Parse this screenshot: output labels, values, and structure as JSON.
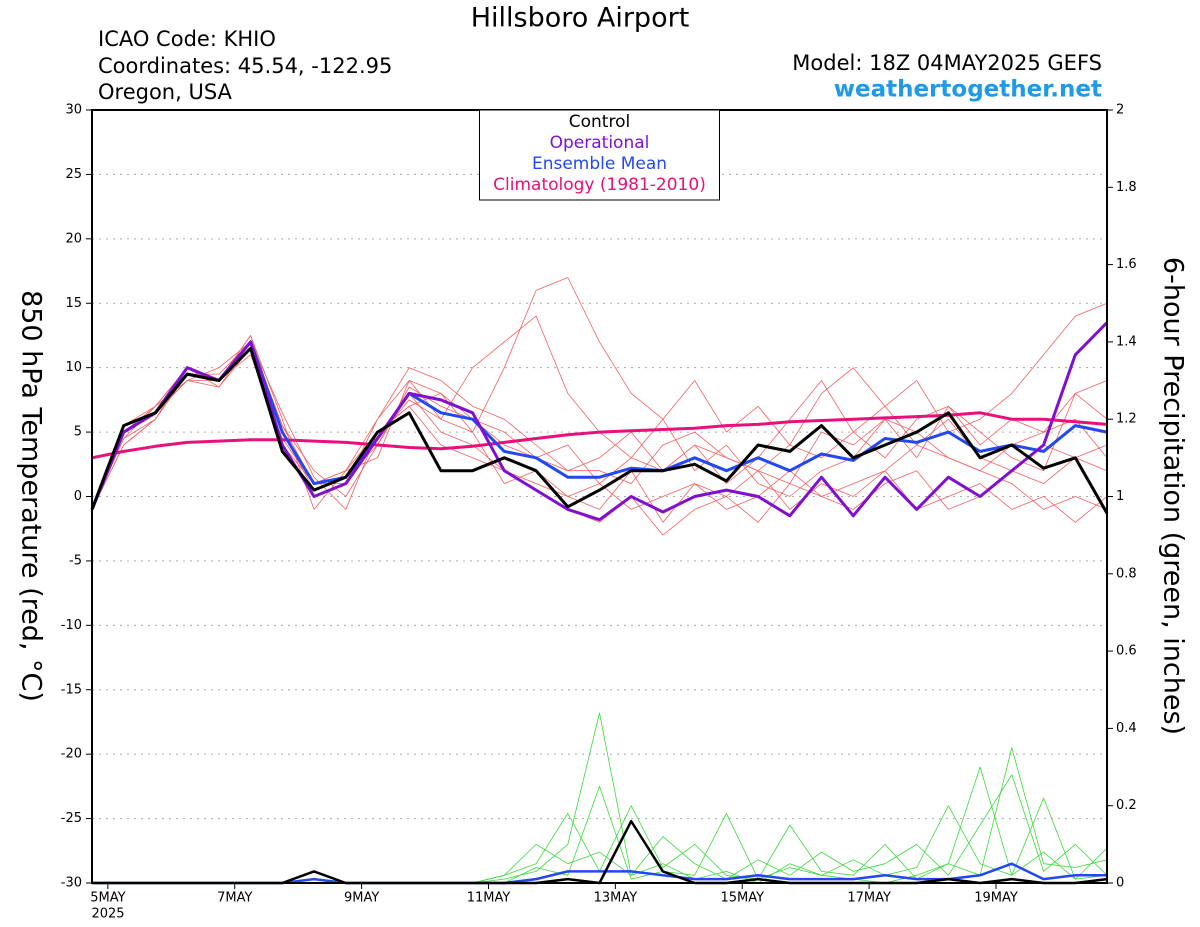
{
  "chart_data": {
    "type": "line",
    "title": "Hillsboro Airport",
    "info": [
      "ICAO Code: KHIO",
      "Coordinates: 45.54, -122.95",
      "Oregon, USA"
    ],
    "model": "Model: 18Z 04MAY2025 GEFS",
    "source": "weathertogether.net",
    "y_label": "850 hPa Temperature (red, °C)",
    "y2_label": "6-hour Precipitation (green, inches)",
    "x_year_label": "2025",
    "legend": "top-center",
    "grid": true,
    "xlim": [
      0,
      384
    ],
    "xticks": [
      {
        "value": 6,
        "label": "5MAY"
      },
      {
        "value": 54,
        "label": "7MAY"
      },
      {
        "value": 102,
        "label": "9MAY"
      },
      {
        "value": 150,
        "label": "11MAY"
      },
      {
        "value": 198,
        "label": "13MAY"
      },
      {
        "value": 246,
        "label": "15MAY"
      },
      {
        "value": 294,
        "label": "17MAY"
      },
      {
        "value": 342,
        "label": "19MAY"
      }
    ],
    "ylim": [
      -30,
      30
    ],
    "yticks": [
      -30,
      -25,
      -20,
      -15,
      -10,
      -5,
      0,
      5,
      10,
      15,
      20,
      25,
      30
    ],
    "y2lim": [
      0,
      2
    ],
    "y2ticks": [
      0,
      0.2,
      0.4,
      0.6,
      0.8,
      1,
      1.2,
      1.4,
      1.6,
      1.8,
      2
    ],
    "x": [
      0,
      12,
      24,
      36,
      48,
      60,
      72,
      84,
      96,
      108,
      120,
      132,
      144,
      156,
      168,
      180,
      192,
      204,
      216,
      228,
      240,
      252,
      264,
      276,
      288,
      300,
      312,
      324,
      336,
      348,
      360,
      372,
      384
    ],
    "series": [
      {
        "color": "#f06060",
        "width": 0.8,
        "values": [
          -1,
          4,
          6,
          10,
          9,
          12.5,
          6,
          -1,
          2,
          5,
          7,
          8,
          6,
          5,
          3,
          4,
          1,
          3,
          2,
          4,
          3,
          2,
          1,
          5,
          4,
          6,
          3,
          7,
          5,
          3,
          2,
          8,
          9
        ]
      },
      {
        "color": "#f06060",
        "width": 0.8,
        "values": [
          -1,
          5,
          7,
          9,
          8.5,
          11.5,
          4,
          0,
          1,
          6,
          9,
          6,
          10,
          12,
          14,
          8,
          5,
          3,
          6,
          2,
          4,
          1,
          0,
          2,
          3,
          6,
          5,
          3,
          2,
          4,
          5,
          6,
          3
        ]
      },
      {
        "color": "#f06060",
        "width": 0.8,
        "values": [
          -1,
          4.5,
          6,
          9.5,
          9.5,
          12,
          5.5,
          2,
          0,
          4,
          8,
          5,
          4,
          2,
          1,
          0,
          -1,
          2,
          -2,
          1,
          0,
          2,
          -1,
          1,
          0,
          2,
          4,
          3,
          2,
          1,
          -1,
          0,
          -1
        ]
      },
      {
        "color": "#f06060",
        "width": 0.8,
        "values": [
          -1,
          5,
          6.5,
          9,
          9,
          11,
          4.5,
          1,
          2,
          3,
          9,
          8,
          5,
          10,
          16,
          17,
          12,
          8,
          6,
          9,
          5,
          7,
          4,
          8,
          10,
          7,
          9,
          5,
          6,
          8,
          11,
          14,
          15
        ]
      },
      {
        "color": "#f06060",
        "width": 0.8,
        "values": [
          -1,
          5.5,
          7,
          10,
          8.5,
          12,
          6.5,
          1.5,
          -1,
          5,
          7,
          4,
          3,
          2,
          0.5,
          -1,
          -2,
          0,
          -3,
          -1,
          0,
          -2,
          1,
          0,
          1,
          2,
          -1,
          0,
          1,
          -1,
          0,
          -2,
          0
        ]
      },
      {
        "color": "#f06060",
        "width": 0.8,
        "values": [
          -1,
          4,
          6,
          9.5,
          9,
          12.5,
          5,
          0.5,
          1.5,
          4,
          8.5,
          7,
          6,
          4,
          3,
          2,
          2,
          1,
          4,
          5,
          3,
          2,
          4,
          3,
          5,
          3,
          6,
          7,
          4,
          6,
          5,
          8,
          6
        ]
      },
      {
        "color": "#f06060",
        "width": 0.8,
        "values": [
          -1,
          5,
          6.5,
          9,
          10,
          12,
          5.5,
          1,
          2,
          6,
          10,
          9,
          7,
          6,
          4,
          2,
          3,
          5,
          2,
          4,
          1,
          3,
          6,
          9,
          5,
          7,
          4,
          6,
          3,
          2,
          4,
          3,
          2
        ]
      },
      {
        "color": "#f06060",
        "width": 0.8,
        "values": [
          -1,
          4.5,
          7,
          10,
          9,
          11.5,
          4,
          1,
          1,
          4.5,
          7.5,
          6,
          5,
          1,
          2,
          0,
          1,
          -1,
          0,
          1,
          -1,
          0,
          2,
          0,
          -1,
          1,
          2,
          -1,
          0,
          2,
          1,
          3,
          4
        ]
      },
      {
        "color": "#3cd83c",
        "width": 0.8,
        "axis": "y2",
        "values": [
          0,
          0,
          0,
          0,
          0,
          0,
          0,
          0,
          0,
          0,
          0,
          0,
          0,
          0.01,
          0.03,
          0.1,
          0.44,
          0.02,
          0.05,
          0.01,
          0.03,
          0,
          0.05,
          0.02,
          0.01,
          0,
          0.02,
          0.05,
          0.3,
          0.02,
          0.08,
          0.01,
          0.02
        ]
      },
      {
        "color": "#3cd83c",
        "width": 0.8,
        "axis": "y2",
        "values": [
          0,
          0,
          0,
          0,
          0,
          0,
          0,
          0.03,
          0,
          0,
          0,
          0,
          0,
          0.02,
          0.05,
          0.18,
          0.03,
          0.2,
          0.04,
          0.1,
          0.02,
          0.01,
          0.15,
          0.03,
          0.02,
          0.1,
          0.01,
          0.05,
          0.02,
          0.35,
          0.05,
          0.04,
          0.06
        ]
      },
      {
        "color": "#3cd83c",
        "width": 0.8,
        "axis": "y2",
        "values": [
          0,
          0,
          0,
          0,
          0,
          0,
          0,
          0,
          0,
          0,
          0,
          0,
          0,
          0.02,
          0.1,
          0.05,
          0.08,
          0.02,
          0.12,
          0.05,
          0.01,
          0.06,
          0.02,
          0.08,
          0.03,
          0.05,
          0.1,
          0.02,
          0.15,
          0.28,
          0.03,
          0.1,
          0.02
        ]
      },
      {
        "color": "#3cd83c",
        "width": 0.8,
        "axis": "y2",
        "values": [
          0,
          0,
          0,
          0,
          0,
          0,
          0,
          0,
          0,
          0,
          0,
          0,
          0,
          0,
          0.04,
          0.02,
          0.25,
          0.01,
          0.03,
          0.02,
          0.18,
          0.01,
          0.04,
          0.02,
          0.06,
          0.02,
          0.04,
          0.2,
          0.05,
          0.02,
          0.22,
          0.01,
          0.09
        ]
      },
      {
        "name": "Climatology (1981-2010)",
        "color": "#e8107a",
        "width": 3,
        "values": [
          3,
          3.5,
          3.9,
          4.2,
          4.3,
          4.4,
          4.4,
          4.3,
          4.2,
          4.0,
          3.8,
          3.7,
          3.9,
          4.2,
          4.5,
          4.8,
          5.0,
          5.1,
          5.2,
          5.3,
          5.5,
          5.6,
          5.8,
          5.9,
          6.0,
          6.1,
          6.2,
          6.3,
          6.5,
          6.0,
          6.0,
          5.8,
          5.6
        ]
      },
      {
        "name": "Ensemble Mean",
        "color": "#2448f0",
        "width": 3,
        "values": [
          -1,
          5,
          6.5,
          9.5,
          9,
          12,
          5,
          1,
          1.5,
          4.5,
          8,
          6.5,
          6,
          3.5,
          3,
          1.5,
          1.5,
          2.2,
          2,
          3,
          2,
          3,
          2,
          3.3,
          2.8,
          4.5,
          4.2,
          5,
          3.5,
          4,
          3.5,
          5.5,
          5
        ]
      },
      {
        "name": "Operational",
        "color": "#8010d0",
        "width": 3,
        "values": [
          -1,
          5,
          6.5,
          10,
          9,
          12,
          4,
          0,
          1,
          4.5,
          8,
          7.5,
          6.5,
          2,
          0.5,
          -1,
          -1.8,
          0,
          -1.2,
          0,
          0.5,
          0,
          -1.5,
          1.5,
          -1.5,
          1.5,
          -1,
          1.5,
          0,
          2,
          4,
          11,
          13.5
        ]
      },
      {
        "name": "Control",
        "color": "#000000",
        "width": 3,
        "values": [
          -1,
          5.5,
          6.5,
          9.5,
          9,
          11.5,
          3.5,
          0.5,
          1.5,
          5,
          6.5,
          2,
          2,
          3,
          2,
          -0.8,
          0.5,
          2,
          2,
          2.5,
          1.2,
          4,
          3.5,
          5.5,
          3,
          4,
          5,
          6.5,
          3,
          4,
          2.2,
          3,
          -1.3
        ]
      },
      {
        "color": "#2448f0",
        "width": 2.5,
        "axis": "y2",
        "values": [
          0,
          0,
          0,
          0,
          0,
          0,
          0,
          0.01,
          0,
          0,
          0,
          0,
          0,
          0,
          0.01,
          0.03,
          0.03,
          0.03,
          0.02,
          0.01,
          0.01,
          0.02,
          0.01,
          0.01,
          0.01,
          0.02,
          0.01,
          0.01,
          0.02,
          0.05,
          0.01,
          0.02,
          0.02
        ]
      },
      {
        "color": "#000000",
        "width": 2.5,
        "axis": "y2",
        "values": [
          0,
          0,
          0,
          0,
          0,
          0,
          0,
          0.03,
          0,
          0,
          0,
          0,
          0,
          0,
          0,
          0.01,
          0,
          0.16,
          0.03,
          0,
          0,
          0.01,
          0,
          0,
          0,
          0,
          0,
          0.01,
          0,
          0.01,
          0,
          0,
          0.01
        ]
      }
    ]
  }
}
